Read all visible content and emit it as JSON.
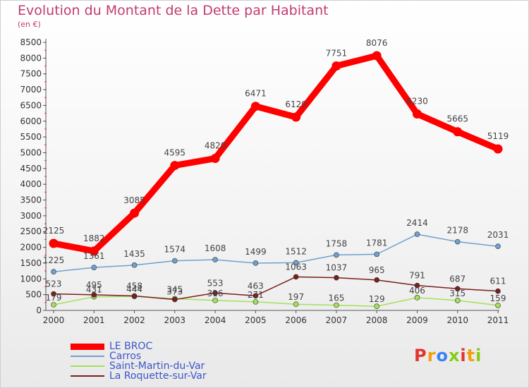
{
  "header": {
    "title": "Evolution du Montant de la Dette par Habitant",
    "subtitle": "(en €)"
  },
  "colors": {
    "title": "#c23b70",
    "legend_text": "#3b55c9"
  },
  "logo": {
    "text": "Proxiti"
  },
  "chart_data": {
    "type": "line",
    "title": "Evolution du Montant de la Dette par Habitant",
    "subtitle": "(en €)",
    "xlabel": "",
    "ylabel": "",
    "x": [
      "2000",
      "2001",
      "2002",
      "2003",
      "2004",
      "2005",
      "2006",
      "2007",
      "2008",
      "2009",
      "2010",
      "2011"
    ],
    "yticks": [
      0,
      500,
      1000,
      1500,
      2000,
      2500,
      3000,
      3500,
      4000,
      4500,
      5000,
      5500,
      6000,
      6500,
      7000,
      7500,
      8000,
      8500
    ],
    "ylim": [
      0,
      8500
    ],
    "grid": false,
    "legend_position": "bottom-left",
    "series": [
      {
        "name": "LE BROC",
        "color": "#ff0000",
        "values": [
          2125,
          1882,
          3085,
          4595,
          4820,
          6471,
          6129,
          7751,
          8076,
          6230,
          5665,
          5119
        ]
      },
      {
        "name": "Carros",
        "color": "#6fa0cf",
        "values": [
          1225,
          1361,
          1435,
          1574,
          1608,
          1499,
          1512,
          1758,
          1781,
          2414,
          2178,
          2031
        ]
      },
      {
        "name": "Saint-Martin-du-Var",
        "color": "#a3e05a",
        "values": [
          179,
          431,
          444,
          373,
          316,
          271,
          197,
          165,
          129,
          406,
          315,
          159
        ]
      },
      {
        "name": "La Roquette-sur-Var",
        "color": "#7a1f1f",
        "values": [
          523,
          495,
          458,
          345,
          553,
          463,
          1063,
          1037,
          965,
          791,
          687,
          611
        ]
      }
    ]
  }
}
